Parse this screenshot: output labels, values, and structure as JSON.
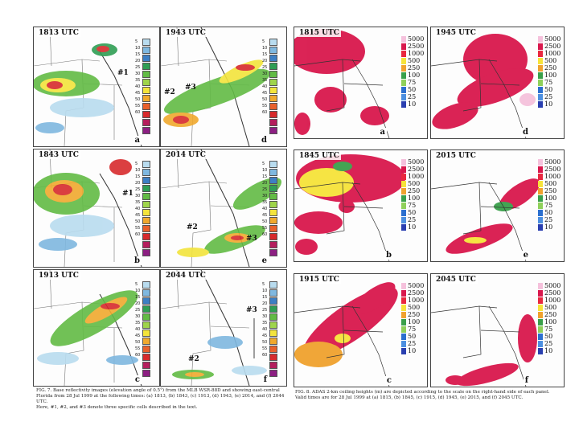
{
  "figure7": {
    "panels": [
      {
        "time": "1813 UTC",
        "letter": "a",
        "cells": [
          {
            "label": "#1"
          }
        ]
      },
      {
        "time": "1943 UTC",
        "letter": "d",
        "cells": [
          {
            "label": "#3"
          },
          {
            "label": "#2"
          }
        ]
      },
      {
        "time": "1843 UTC",
        "letter": "b",
        "cells": [
          {
            "label": "#1"
          }
        ]
      },
      {
        "time": "2014 UTC",
        "letter": "e",
        "cells": [
          {
            "label": "#2"
          },
          {
            "label": "#3"
          }
        ]
      },
      {
        "time": "1913 UTC",
        "letter": "c",
        "cells": []
      },
      {
        "time": "2044 UTC",
        "letter": "f",
        "cells": [
          {
            "label": "#3"
          },
          {
            "label": "#2"
          }
        ]
      }
    ],
    "dbz_scale": [
      "5",
      "10",
      "15",
      "20",
      "25",
      "30",
      "35",
      "40",
      "45",
      "50",
      "55",
      "60"
    ],
    "dbz_colors": [
      "#b9dcef",
      "#7fb8e0",
      "#3d7fc4",
      "#2f9e54",
      "#62bb45",
      "#9fd44b",
      "#f3e43c",
      "#f0a92e",
      "#e8612c",
      "#d72a2c",
      "#b41e5d",
      "#8c1f82"
    ],
    "caption_lines": [
      "FIG. 7. Base reflectivity images (elevation angle of 0.5°) from the MLB WSR-88D and showing east-central",
      "Florida from 28 Jul 1999 at the following times: (a) 1813, (b) 1843, (c) 1913, (d) 1943, (e) 2014, and (f) 2044 UTC.",
      "Here, #1, #2, and #3 denote three specific cells described in the text."
    ]
  },
  "figure8": {
    "panels": [
      {
        "time": "1815 UTC",
        "letter": "a"
      },
      {
        "time": "1945 UTC",
        "letter": "d"
      },
      {
        "time": "1845 UTC",
        "letter": "b"
      },
      {
        "time": "2015 UTC",
        "letter": "e"
      },
      {
        "time": "1915 UTC",
        "letter": "c"
      },
      {
        "time": "2045 UTC",
        "letter": "f"
      }
    ],
    "ceiling_scale": [
      "5000",
      "2500",
      "1000",
      "500",
      "250",
      "100",
      "75",
      "50",
      "25",
      "10"
    ],
    "ceiling_colors": [
      "#f5c1dc",
      "#d9184d",
      "#e9283f",
      "#f6e33a",
      "#f0a22e",
      "#3aa04a",
      "#8fd05a",
      "#2b6fcf",
      "#4c8fe0",
      "#2a3fb0"
    ],
    "caption_lines": [
      "FIG. 8. ADAS 2-km ceiling heights (m) are depicted according to the scale on the right-hand side of each panel.",
      "Valid times are for 28 Jul 1999 at (a) 1815, (b) 1845, (c) 1915, (d) 1945, (e) 2015, and (f) 2045 UTC."
    ]
  }
}
